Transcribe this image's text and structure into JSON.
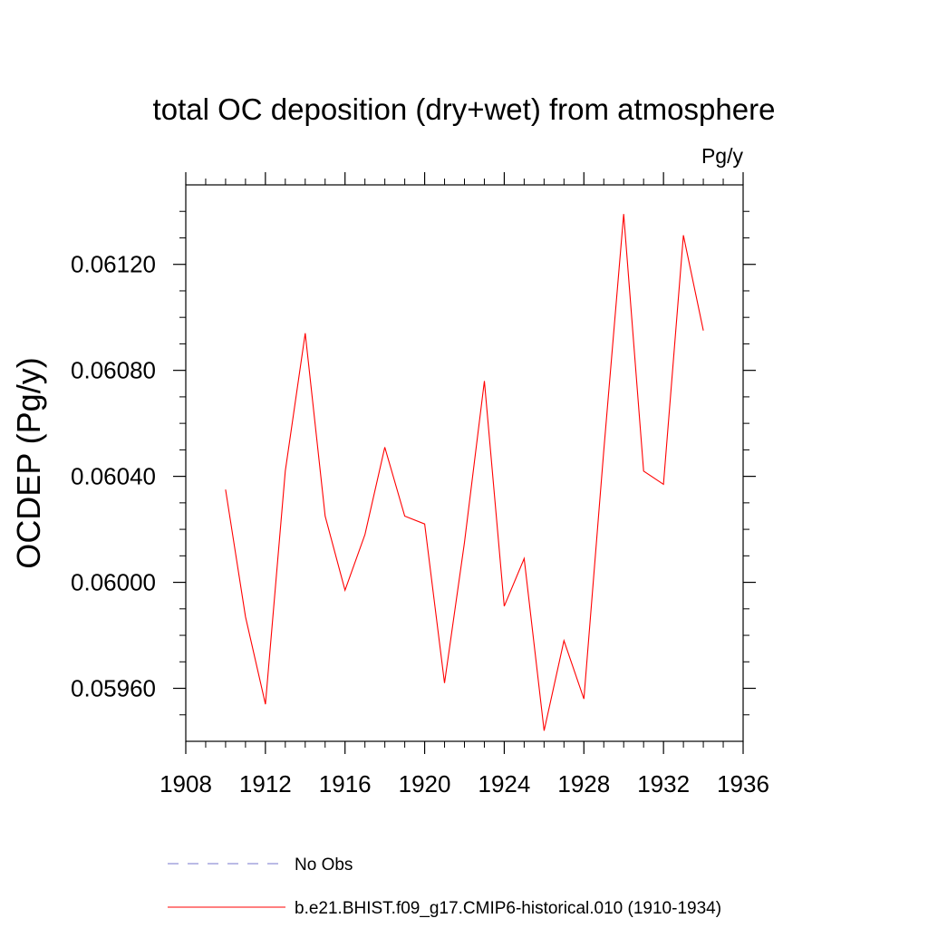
{
  "chart_data": {
    "type": "line",
    "title": "total OC deposition (dry+wet) from atmosphere",
    "units": "Pg/y",
    "ylabel": "OCDEP  (Pg/y)",
    "xlabel": "",
    "xlim": [
      1908,
      1936
    ],
    "ylim": [
      0.0594,
      0.0615
    ],
    "x_ticks": [
      "1908",
      "1912",
      "1916",
      "1920",
      "1924",
      "1928",
      "1932",
      "1936"
    ],
    "y_ticks": [
      "0.05960",
      "0.06000",
      "0.06040",
      "0.06080",
      "0.06120"
    ],
    "series": [
      {
        "name": "b.e21.BHIST.f09_g17.CMIP6-historical.010 (1910-1934)",
        "color": "#ff0000",
        "x": [
          1910,
          1911,
          1912,
          1913,
          1914,
          1915,
          1916,
          1917,
          1918,
          1919,
          1920,
          1921,
          1922,
          1923,
          1924,
          1925,
          1926,
          1927,
          1928,
          1929,
          1930,
          1931,
          1932,
          1933,
          1934
        ],
        "values": [
          0.06035,
          0.05987,
          0.05954,
          0.06042,
          0.06094,
          0.06025,
          0.05997,
          0.06018,
          0.06051,
          0.06025,
          0.06022,
          0.05962,
          0.06015,
          0.06076,
          0.05991,
          0.06009,
          0.05944,
          0.05978,
          0.05956,
          0.0605,
          0.06139,
          0.06042,
          0.06037,
          0.06131,
          0.06095
        ]
      }
    ],
    "legend": [
      {
        "label": "No Obs",
        "color": "#7777cc",
        "style": "dashed"
      },
      {
        "label": "b.e21.BHIST.f09_g17.CMIP6-historical.010 (1910-1934)",
        "color": "#ff0000",
        "style": "solid"
      }
    ]
  }
}
